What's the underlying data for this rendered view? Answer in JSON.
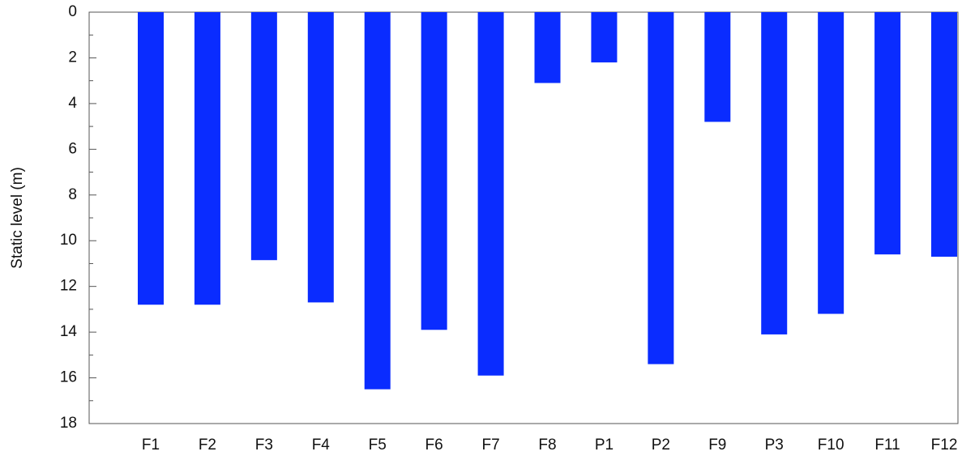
{
  "chart_data": {
    "type": "bar",
    "y_label": "Static level (m)",
    "categories": [
      "F1",
      "F2",
      "F3",
      "F4",
      "F5",
      "F6",
      "F7",
      "F8",
      "P1",
      "P2",
      "F9",
      "P3",
      "F10",
      "F11",
      "F12"
    ],
    "values": [
      12.8,
      12.8,
      10.85,
      12.7,
      16.5,
      13.9,
      15.9,
      3.1,
      2.2,
      15.4,
      4.8,
      14.1,
      13.2,
      10.6,
      10.7
    ],
    "color": "#0a2cff",
    "ylim": [
      0,
      18
    ],
    "yticks": [
      0,
      2,
      4,
      6,
      8,
      10,
      12,
      14,
      16,
      18
    ],
    "y_inverted": true
  }
}
